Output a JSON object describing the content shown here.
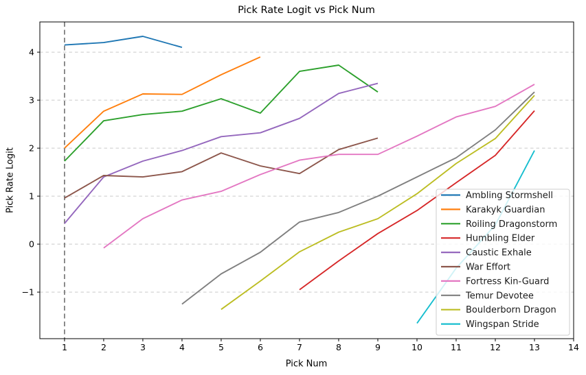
{
  "figure": {
    "title": "Pick Rate Logit vs Pick Num",
    "xlabel": "Pick Num",
    "ylabel": "Pick Rate Logit"
  },
  "chart_data": {
    "type": "line",
    "title": "Pick Rate Logit vs Pick Num",
    "xlabel": "Pick Num",
    "ylabel": "Pick Rate Logit",
    "xlim": [
      0.37,
      14.0
    ],
    "ylim": [
      -1.97,
      4.63
    ],
    "xticks": [
      1,
      2,
      3,
      4,
      5,
      6,
      7,
      8,
      9,
      10,
      11,
      12,
      13,
      14
    ],
    "yticks": [
      -1,
      0,
      1,
      2,
      3,
      4
    ],
    "grid": "horizontal-dashed",
    "grid_color": "#c9c9c9",
    "vline": {
      "x": 1,
      "style": "dashed",
      "color": "#7f7f7f"
    },
    "legend_position": "center-right",
    "legend_bg": "rgba(255,255,255,0.8)",
    "legend_border": "#cccccc",
    "series": [
      {
        "name": "Ambling Stormshell",
        "color": "#1f77b4",
        "x": [
          1,
          2,
          3,
          4
        ],
        "y": [
          4.15,
          4.2,
          4.33,
          4.1
        ]
      },
      {
        "name": "Karakyk Guardian",
        "color": "#ff7f0e",
        "x": [
          1,
          2,
          3,
          4,
          5,
          6
        ],
        "y": [
          2.0,
          2.77,
          3.13,
          3.12,
          3.53,
          3.9
        ]
      },
      {
        "name": "Roiling Dragonstorm",
        "color": "#2ca02c",
        "x": [
          1,
          2,
          3,
          4,
          5,
          6,
          7,
          8,
          9
        ],
        "y": [
          1.73,
          2.57,
          2.7,
          2.77,
          3.03,
          2.73,
          3.6,
          3.73,
          3.17
        ]
      },
      {
        "name": "Humbling Elder",
        "color": "#d62728",
        "x": [
          7,
          8,
          9,
          10,
          11,
          12,
          13
        ],
        "y": [
          -0.95,
          -0.35,
          0.22,
          0.7,
          1.28,
          1.85,
          2.78
        ]
      },
      {
        "name": "Caustic Exhale",
        "color": "#9467bd",
        "x": [
          1,
          2,
          3,
          4,
          5,
          6,
          7,
          8,
          9
        ],
        "y": [
          0.43,
          1.4,
          1.73,
          1.95,
          2.24,
          2.32,
          2.62,
          3.14,
          3.35
        ]
      },
      {
        "name": "War Effort",
        "color": "#8c564b",
        "x": [
          1,
          2,
          3,
          4,
          5,
          6,
          7,
          8,
          9
        ],
        "y": [
          0.96,
          1.43,
          1.4,
          1.51,
          1.9,
          1.63,
          1.47,
          1.97,
          2.21
        ]
      },
      {
        "name": "Fortress Kin-Guard",
        "color": "#e377c2",
        "x": [
          2,
          3,
          4,
          5,
          6,
          7,
          8,
          9,
          10,
          11,
          12,
          13
        ],
        "y": [
          -0.08,
          0.53,
          0.92,
          1.1,
          1.45,
          1.75,
          1.87,
          1.87,
          2.25,
          2.65,
          2.87,
          3.33
        ]
      },
      {
        "name": "Temur Devotee",
        "color": "#7f7f7f",
        "x": [
          4,
          5,
          6,
          7,
          8,
          9,
          10,
          11,
          12,
          13
        ],
        "y": [
          -1.25,
          -0.62,
          -0.17,
          0.46,
          0.66,
          1.0,
          1.4,
          1.8,
          2.38,
          3.17
        ]
      },
      {
        "name": "Boulderborn Dragon",
        "color": "#bcbd22",
        "x": [
          5,
          6,
          7,
          8,
          9,
          10,
          11,
          12,
          13
        ],
        "y": [
          -1.36,
          -0.77,
          -0.16,
          0.25,
          0.53,
          1.05,
          1.68,
          2.2,
          3.1
        ]
      },
      {
        "name": "Wingspan Stride",
        "color": "#17becf",
        "x": [
          10,
          11,
          12,
          13
        ],
        "y": [
          -1.65,
          -0.5,
          0.4,
          1.95
        ]
      }
    ]
  }
}
